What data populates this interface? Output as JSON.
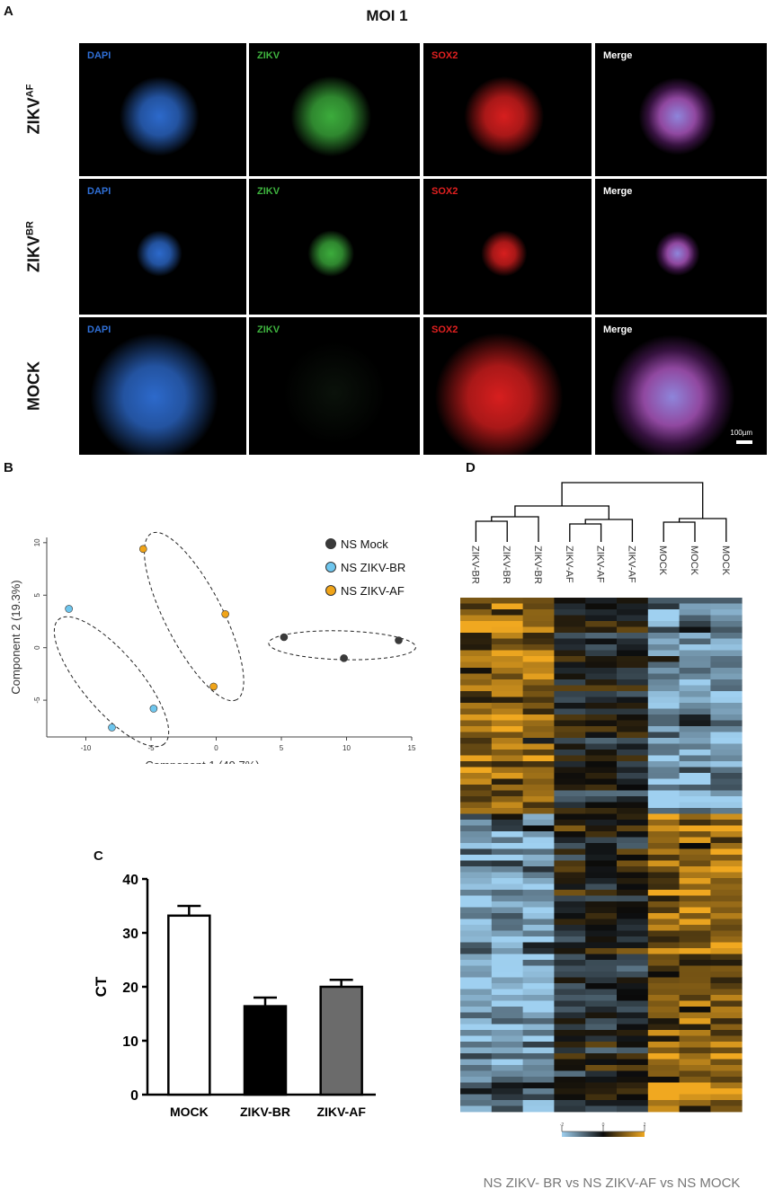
{
  "panel_labels": {
    "a": "A",
    "b": "B",
    "c": "C",
    "d": "D"
  },
  "panel_a": {
    "title": "MOI 1",
    "columns": [
      "DAPI",
      "ZIKV",
      "SOX2",
      "Merge"
    ],
    "column_colors": [
      "#2f6fd6",
      "#3fb53f",
      "#e22020",
      "#ffffff"
    ],
    "rows": [
      {
        "label_main": "ZIKV",
        "label_sup": "AF"
      },
      {
        "label_main": "ZIKV",
        "label_sup": "BR"
      },
      {
        "label_main": "MOCK",
        "label_sup": ""
      }
    ],
    "scale_bar": "100µm"
  },
  "chart_data": [
    {
      "type": "scatter",
      "panel": "B",
      "xlabel": "Component 1 (49.7%)",
      "ylabel": "Component 2 (19.3%)",
      "xlim": [
        -13,
        15
      ],
      "ylim": [
        -8.5,
        10.5
      ],
      "xticks": [
        -10,
        -5,
        0,
        5,
        10,
        15
      ],
      "yticks": [
        -5,
        0,
        5,
        10
      ],
      "legend_position": "top-right",
      "series": [
        {
          "name": "NS Mock",
          "color": "#3a3a3a",
          "points": [
            [
              5.2,
              1.0
            ],
            [
              9.8,
              -1.0
            ],
            [
              14.0,
              0.7
            ]
          ]
        },
        {
          "name": "NS ZIKV-BR",
          "color": "#6ec6ee",
          "points": [
            [
              -11.3,
              3.7
            ],
            [
              -8.0,
              -7.6
            ],
            [
              -4.8,
              -5.8
            ]
          ]
        },
        {
          "name": "NS ZIKV-AF",
          "color": "#f0a418",
          "points": [
            [
              -5.6,
              9.4
            ],
            [
              0.7,
              3.2
            ],
            [
              -0.2,
              -3.7
            ]
          ]
        }
      ]
    },
    {
      "type": "bar",
      "panel": "C",
      "categories": [
        "MOCK",
        "ZIKV-BR",
        "ZIKV-AF"
      ],
      "values": [
        33.2,
        16.4,
        20.0
      ],
      "errors": [
        1.8,
        1.6,
        1.3
      ],
      "fill_colors": [
        "#ffffff",
        "#000000",
        "#6b6b6b"
      ],
      "ylabel": "CT",
      "ylim": [
        0,
        40
      ],
      "yticks": [
        0,
        10,
        20,
        30,
        40
      ]
    },
    {
      "type": "heatmap",
      "panel": "D",
      "column_labels": [
        "ZIKV-BR",
        "ZIKV-BR",
        "ZIKV-BR",
        "ZIKV-AF",
        "ZIKV-AF",
        "ZIKV-AF",
        "MOCK",
        "MOCK",
        "MOCK"
      ],
      "block_pattern": [
        [
          1,
          1,
          1,
          0,
          0,
          0,
          -1,
          -1,
          -1
        ],
        [
          -1,
          -1,
          -1,
          0,
          0,
          0,
          1,
          1,
          1
        ]
      ],
      "colorscale": [
        "#9fd0f0",
        "#0a0a0a",
        "#f0a820"
      ],
      "scale_ticks": [
        "-2",
        "0",
        "2"
      ],
      "caption": "NS ZIKV- BR vs NS ZIKV-AF vs NS MOCK"
    }
  ]
}
